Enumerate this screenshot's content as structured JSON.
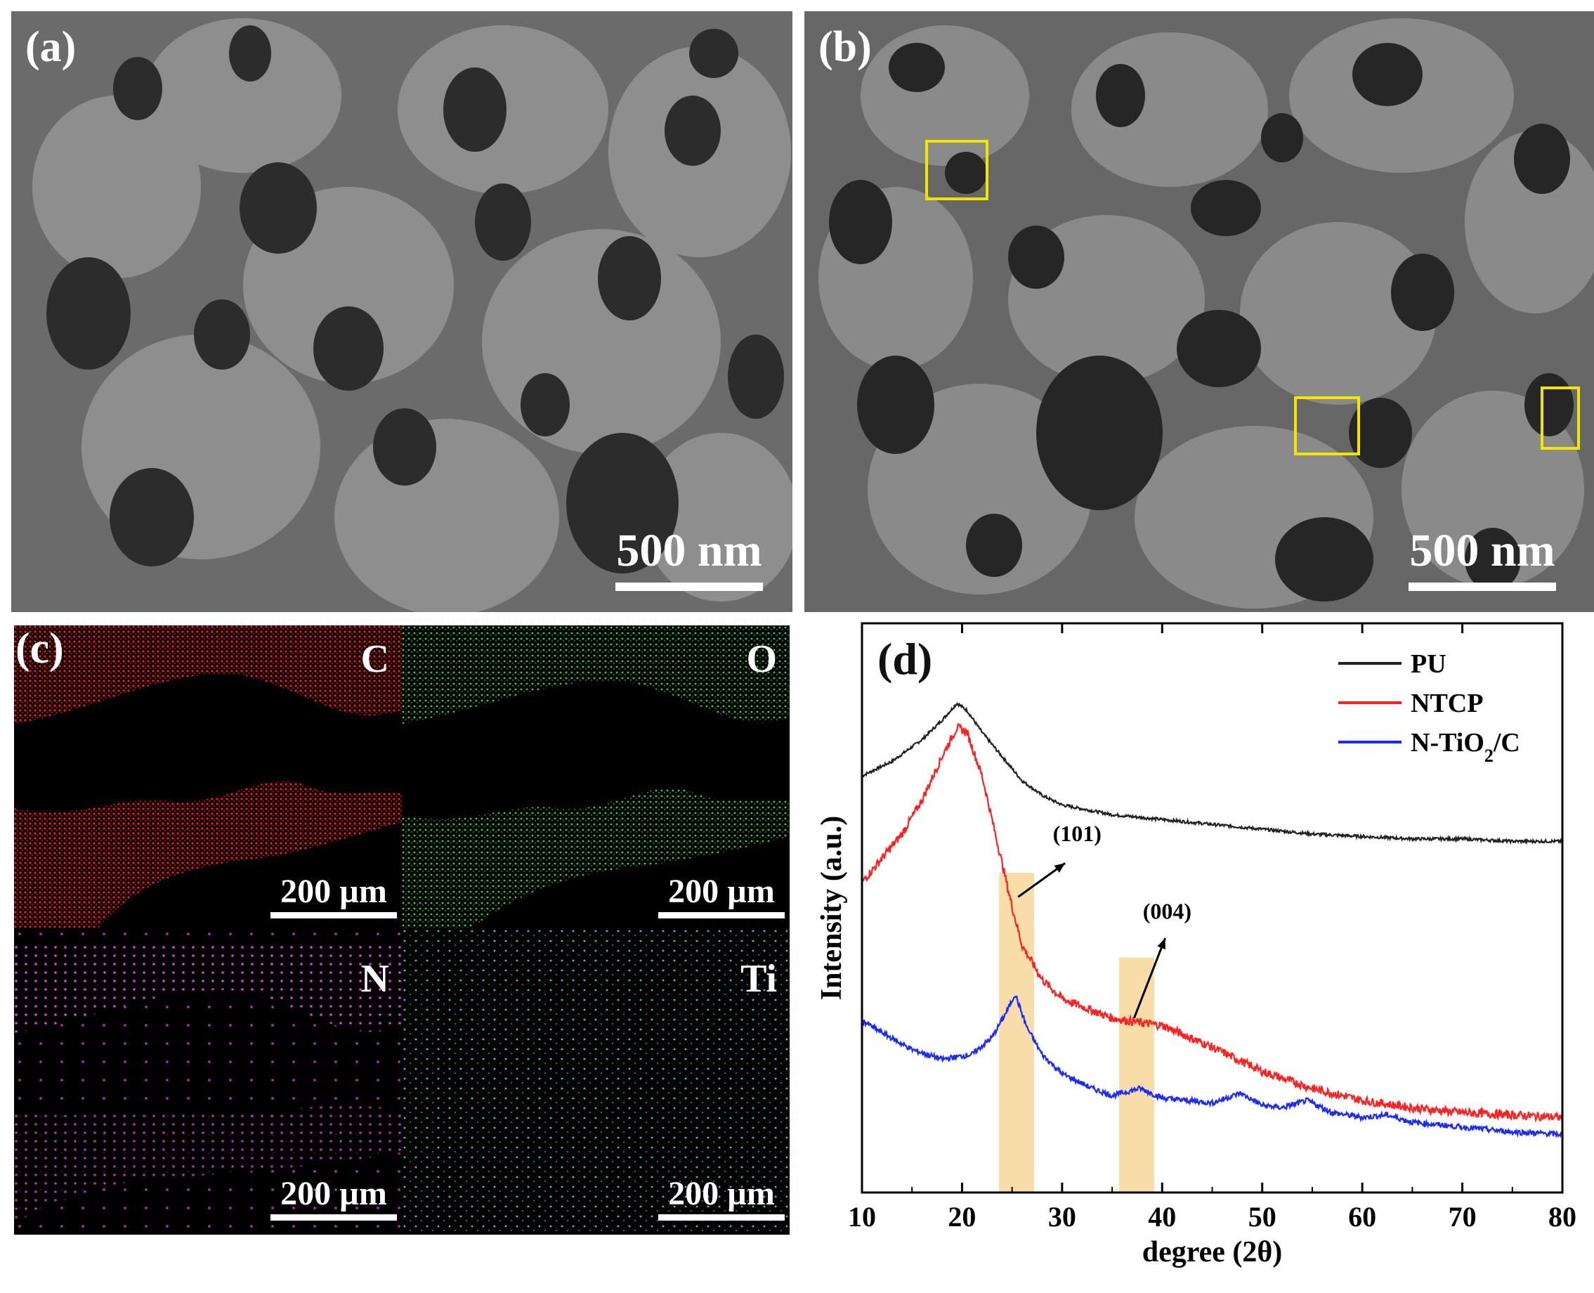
{
  "panels": {
    "a": {
      "label": "(a)",
      "scale": "500 nm"
    },
    "b": {
      "label": "(b)",
      "scale": "500 nm"
    },
    "c": {
      "label": "(c)",
      "maps": [
        {
          "element": "C",
          "scale": "200 µm",
          "color": "#ff1a1a"
        },
        {
          "element": "O",
          "scale": "200 µm",
          "color": "#28d428"
        },
        {
          "element": "N",
          "scale": "200 µm",
          "color": "#e040e0"
        },
        {
          "element": "Ti",
          "scale": "200 µm",
          "color": "#22d0e0"
        }
      ]
    },
    "d": {
      "label": "(d)"
    }
  },
  "chart_data": {
    "type": "line",
    "xlabel": "degree (2θ)",
    "ylabel": "Intensity (a.u.)",
    "xlim": [
      10,
      80
    ],
    "xticks": [
      10,
      20,
      30,
      40,
      50,
      60,
      70,
      80
    ],
    "y_ticks_shown": false,
    "legend_position": "top-right",
    "series": [
      {
        "name": "PU",
        "color": "#222222",
        "x": [
          10,
          13,
          16,
          18,
          19.5,
          20.5,
          22,
          24,
          26,
          28,
          30,
          35,
          40,
          45,
          50,
          55,
          60,
          65,
          70,
          75,
          80
        ],
        "y": [
          1.72,
          1.78,
          1.87,
          1.95,
          2.02,
          1.99,
          1.9,
          1.8,
          1.7,
          1.64,
          1.6,
          1.56,
          1.54,
          1.52,
          1.5,
          1.48,
          1.47,
          1.46,
          1.46,
          1.45,
          1.45
        ]
      },
      {
        "name": "NTCP",
        "color": "#ff2020",
        "x": [
          10,
          12,
          14,
          16,
          18,
          19.5,
          20.5,
          22,
          23.5,
          25,
          26,
          28,
          30,
          35,
          38,
          40,
          45,
          50,
          55,
          60,
          65,
          70,
          75,
          80
        ],
        "y": [
          1.28,
          1.38,
          1.48,
          1.62,
          1.8,
          1.92,
          1.9,
          1.72,
          1.45,
          1.18,
          1.02,
          0.88,
          0.8,
          0.72,
          0.7,
          0.69,
          0.6,
          0.5,
          0.43,
          0.38,
          0.35,
          0.33,
          0.32,
          0.31
        ]
      },
      {
        "name": "N-TiO2/C",
        "color": "#1a2aff",
        "x": [
          10,
          12,
          15,
          18,
          21,
          23,
          24.5,
          25.3,
          26.5,
          28,
          30,
          33,
          35,
          37.8,
          40,
          45,
          47.8,
          50,
          52,
          54.5,
          57,
          60,
          62.5,
          65,
          70,
          75,
          80
        ],
        "y": [
          0.71,
          0.66,
          0.59,
          0.55,
          0.57,
          0.64,
          0.75,
          0.82,
          0.68,
          0.57,
          0.49,
          0.43,
          0.4,
          0.43,
          0.39,
          0.37,
          0.41,
          0.36,
          0.35,
          0.38,
          0.33,
          0.31,
          0.32,
          0.29,
          0.27,
          0.25,
          0.24
        ]
      }
    ],
    "annotations": [
      {
        "text": "(101)",
        "x": 25.5
      },
      {
        "text": "(004)",
        "x": 37.5
      }
    ],
    "highlight_bands": [
      [
        23.7,
        27.2
      ],
      [
        35.7,
        39.2
      ]
    ]
  }
}
